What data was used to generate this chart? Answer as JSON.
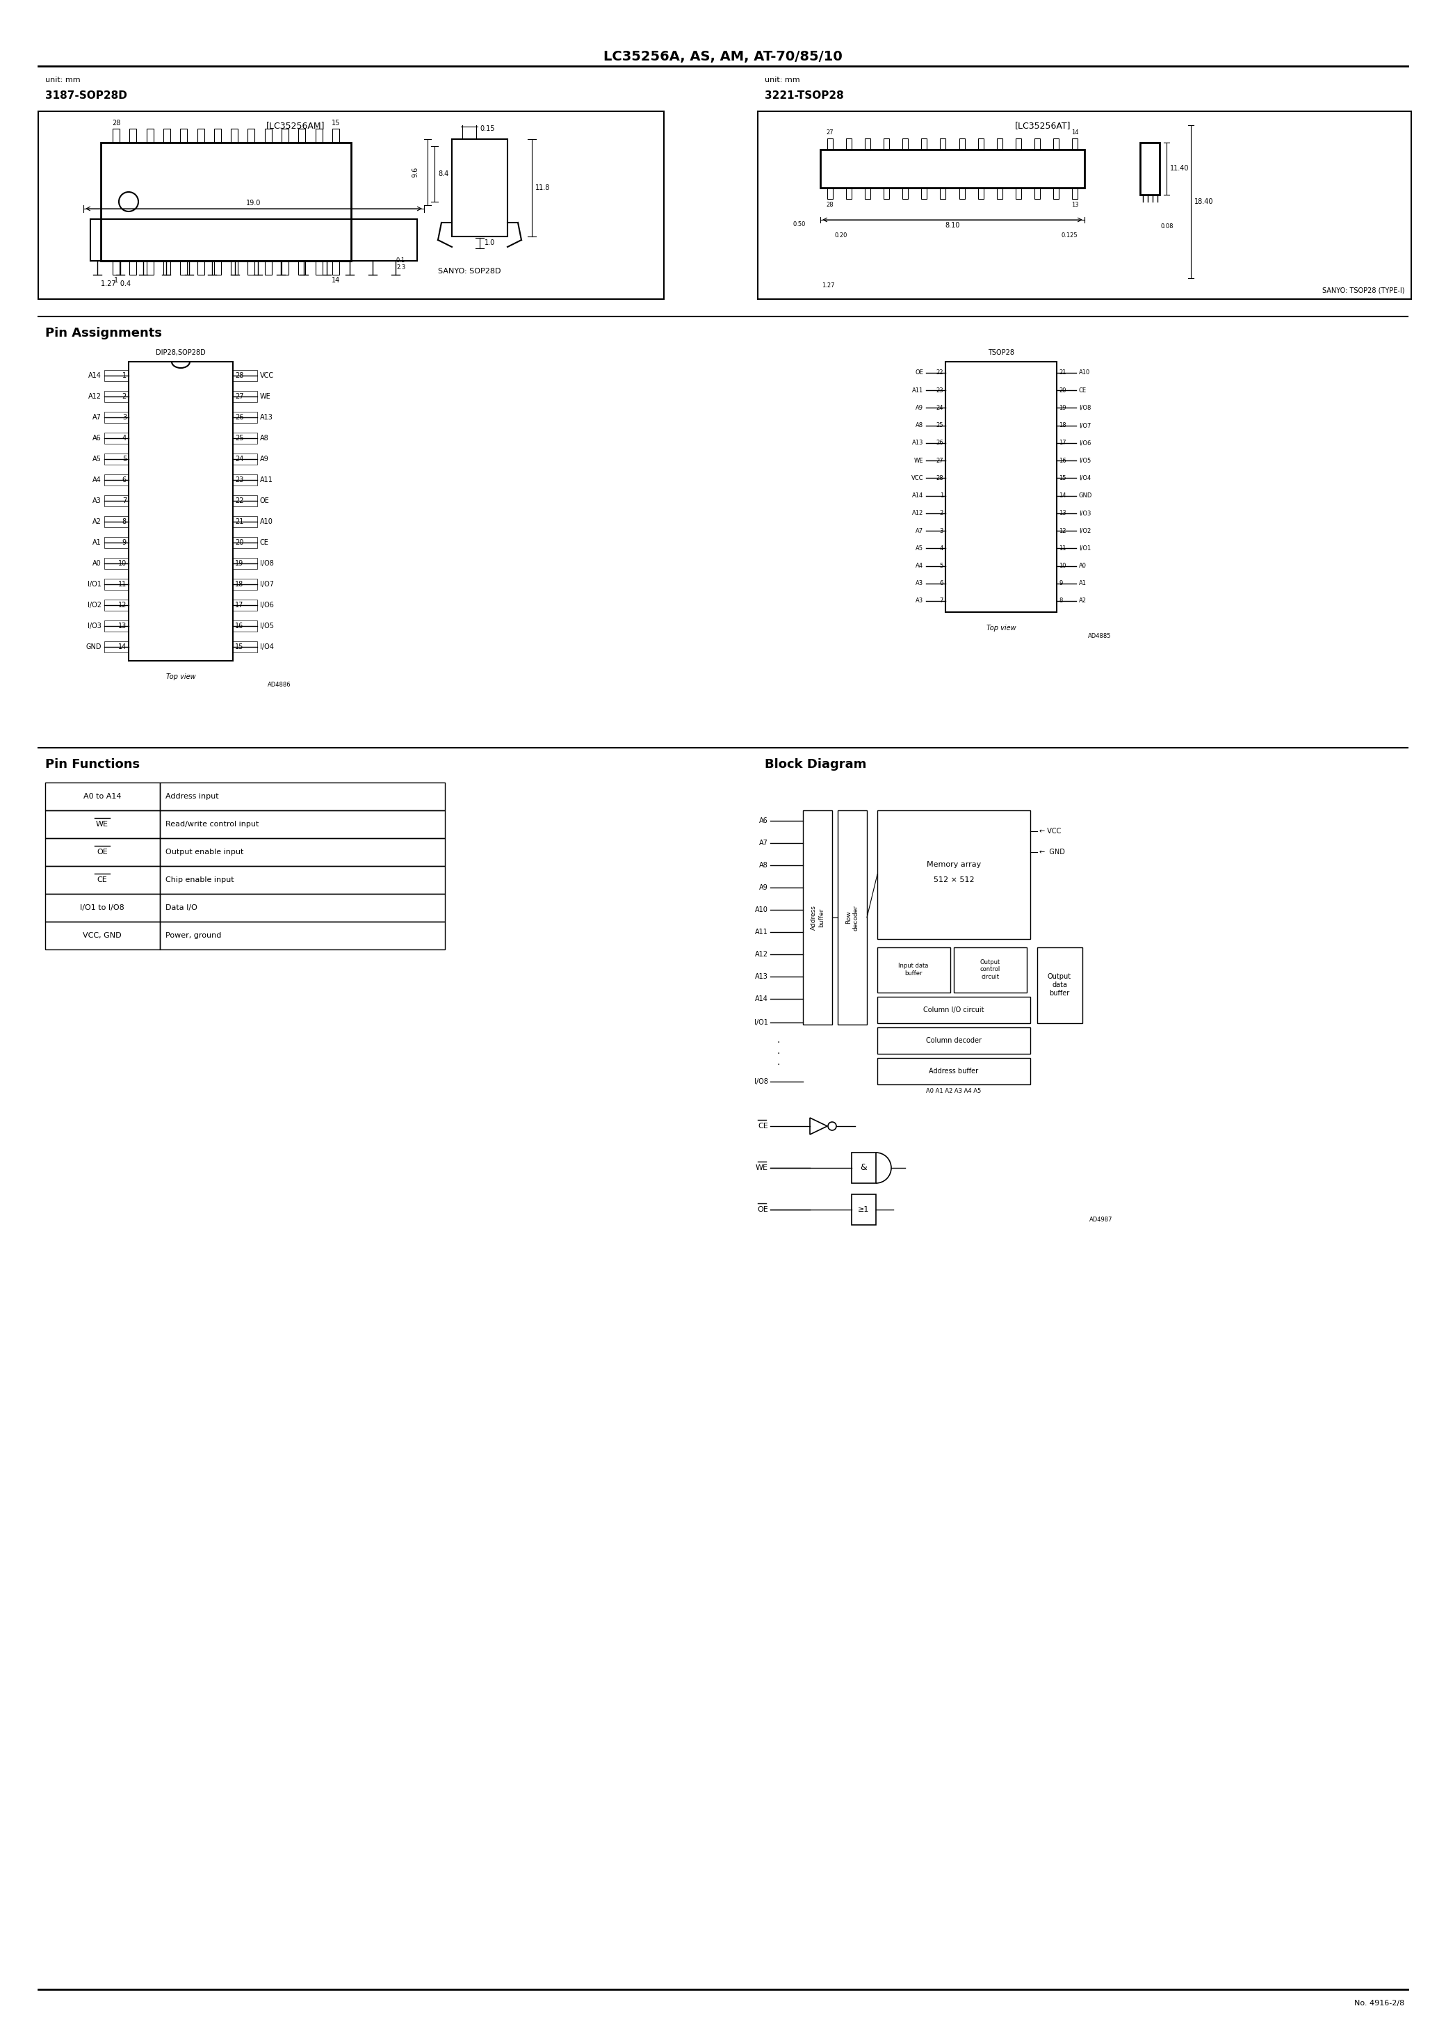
{
  "title": "LC35256A, AS, AM, AT-70/85/10",
  "page_num": "No. 4916-2/8",
  "bg_color": "#ffffff",
  "pkg_left_unit": "unit: mm",
  "pkg_left_name": "3187-SOP28D",
  "pkg_left_chip_label": "[LC35256AM]",
  "pkg_left_sanyo": "SANYO: SOP28D",
  "pkg_right_unit": "unit: mm",
  "pkg_right_name": "3221-TSOP28",
  "pkg_right_chip_label": "[LC35256AT]",
  "pkg_right_sanyo": "SANYO: TSOP28 (TYPE-I)",
  "pin_assign_title": "Pin Assignments",
  "pin_assign_left_label": "DIP28,SOP28D",
  "pin_assign_right_label": "TSOP28",
  "dip_left_pins": [
    "A14",
    "A12",
    "A7",
    "A6",
    "A5",
    "A4",
    "A3",
    "A2",
    "A1",
    "A0",
    "I/O1",
    "I/O2",
    "I/O3",
    "GND"
  ],
  "dip_right_pins": [
    "VCC",
    "WE",
    "A13",
    "A8",
    "A9",
    "A11",
    "OE",
    "A10",
    "CE",
    "I/O8",
    "I/O7",
    "I/O6",
    "I/O5",
    "I/O4"
  ],
  "tsop_left_pins": [
    "OE",
    "A11",
    "A9",
    "A8",
    "A13",
    "WE",
    "VCC",
    "A14",
    "A12",
    "A7",
    "A5",
    "A4",
    "A3",
    "A3"
  ],
  "tsop_left_nums": [
    "22",
    "23",
    "24",
    "25",
    "26",
    "27",
    "28",
    "1",
    "2",
    "3",
    "4",
    "5",
    "6",
    "7"
  ],
  "tsop_right_pins": [
    "A10",
    "CE",
    "I/O8",
    "I/O7",
    "I/O6",
    "I/O5",
    "I/O4",
    "GND",
    "I/O3",
    "I/O2",
    "I/O1",
    "A0",
    "A1",
    "A2"
  ],
  "tsop_right_nums": [
    "21",
    "20",
    "19",
    "18",
    "17",
    "16",
    "15",
    "14",
    "13",
    "12",
    "11",
    "10",
    "9",
    "8"
  ],
  "pin_func_title": "Pin Functions",
  "pin_functions": [
    {
      "pin": "A0 to A14",
      "func": "Address input",
      "overline": false
    },
    {
      "pin": "WE",
      "func": "Read/write control input",
      "overline": true
    },
    {
      "pin": "OE",
      "func": "Output enable input",
      "overline": true
    },
    {
      "pin": "CE",
      "func": "Chip enable input",
      "overline": true
    },
    {
      "pin": "I/O1 to I/O8",
      "func": "Data I/O",
      "overline": false
    },
    {
      "pin": "VCC, GND",
      "func": "Power, ground",
      "overline": false
    }
  ],
  "block_title": "Block Diagram",
  "block_addr_inputs": [
    "A6",
    "A7",
    "A8",
    "A9",
    "A10",
    "A11",
    "A12",
    "A13",
    "A14"
  ],
  "ad_ref_left": "AD4886",
  "ad_ref_right": "AD4885",
  "ad_ref_block": "AD4987"
}
